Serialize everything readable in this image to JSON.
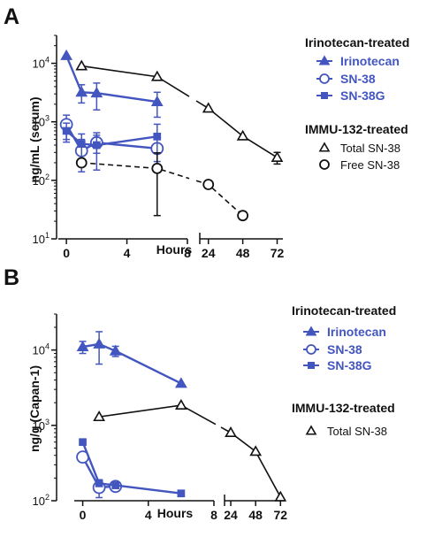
{
  "colors": {
    "blue": "#4356c0",
    "black": "#111111"
  },
  "chart_data": [
    {
      "panel": "A",
      "type": "line",
      "ylabel": "ng/mL (serum)",
      "xlabel": "Hours",
      "yscale": "log",
      "ylim": [
        10,
        30000
      ],
      "xaxis_segments": [
        {
          "range": [
            -0.3,
            8
          ],
          "ticks": [
            0,
            4,
            8
          ]
        },
        {
          "range": [
            18,
            76
          ],
          "ticks": [
            24,
            48,
            72
          ]
        }
      ],
      "yticks": [
        "10^1",
        "10^2",
        "10^3",
        "10^4"
      ],
      "legend": [
        {
          "group": "Irinotecan-treated",
          "items": [
            {
              "name": "Irinotecan",
              "marker": "triangle-filled",
              "color": "#4356c0"
            },
            {
              "name": "SN-38",
              "marker": "circle-open",
              "color": "#4356c0"
            },
            {
              "name": "SN-38G",
              "marker": "square-filled",
              "color": "#4356c0"
            }
          ]
        },
        {
          "group": "IMMU-132-treated",
          "items": [
            {
              "name": "Total SN-38",
              "marker": "triangle-open",
              "color": "#111111"
            },
            {
              "name": "Free SN-38",
              "marker": "circle-open",
              "color": "#111111"
            }
          ]
        }
      ],
      "series": [
        {
          "name": "Irinotecan",
          "color": "#4356c0",
          "marker": "triangle-filled",
          "style": "solid",
          "points": [
            [
              0,
              13500,
              null
            ],
            [
              1,
              3200,
              1100
            ],
            [
              2,
              3100,
              1500
            ],
            [
              6,
              2200,
              1000
            ]
          ]
        },
        {
          "name": "SN-38",
          "color": "#4356c0",
          "marker": "circle-open",
          "style": "solid",
          "points": [
            [
              0,
              900,
              400
            ],
            [
              1,
              320,
              180
            ],
            [
              2,
              440,
              150
            ],
            [
              6,
              350,
              0
            ]
          ]
        },
        {
          "name": "SN-38G",
          "color": "#4356c0",
          "marker": "square-filled",
          "style": "solid",
          "points": [
            [
              0,
              700,
              250
            ],
            [
              1,
              420,
              200
            ],
            [
              2,
              400,
              250
            ],
            [
              6,
              560,
              350
            ]
          ]
        },
        {
          "name": "Total SN-38",
          "color": "#111111",
          "marker": "triangle-open",
          "style": "solid",
          "points": [
            [
              1,
              9000,
              null
            ],
            [
              6,
              5900,
              null
            ],
            [
              24,
              1700,
              null
            ],
            [
              48,
              570,
              null
            ],
            [
              72,
              245,
              55
            ]
          ]
        },
        {
          "name": "Free SN-38",
          "color": "#111111",
          "marker": "circle-open",
          "style": "dashed",
          "points": [
            [
              1,
              200,
              null
            ],
            [
              6,
              160,
              135
            ],
            [
              24,
              85,
              null
            ],
            [
              48,
              25,
              null
            ]
          ]
        }
      ]
    },
    {
      "panel": "B",
      "type": "line",
      "ylabel": "ng/g (Capan-1)",
      "xlabel": "Hours",
      "yscale": "log",
      "ylim": [
        100,
        30000
      ],
      "xaxis_segments": [
        {
          "range": [
            -0.3,
            8
          ],
          "ticks": [
            0,
            4,
            8
          ]
        },
        {
          "range": [
            18,
            76
          ],
          "ticks": [
            24,
            48,
            72
          ]
        }
      ],
      "yticks": [
        "10^2",
        "10^3",
        "10^4"
      ],
      "legend": [
        {
          "group": "Irinotecan-treated",
          "items": [
            {
              "name": "Irinotecan",
              "marker": "triangle-filled",
              "color": "#4356c0"
            },
            {
              "name": "SN-38",
              "marker": "circle-open",
              "color": "#4356c0"
            },
            {
              "name": "SN-38G",
              "marker": "square-filled",
              "color": "#4356c0"
            }
          ]
        },
        {
          "group": "IMMU-132-treated",
          "items": [
            {
              "name": "Total SN-38",
              "marker": "triangle-open",
              "color": "#111111"
            }
          ]
        }
      ],
      "series": [
        {
          "name": "Irinotecan",
          "color": "#4356c0",
          "marker": "triangle-filled",
          "style": "solid",
          "points": [
            [
              0,
              11000,
              2000
            ],
            [
              1,
              12000,
              5500
            ],
            [
              2,
              9700,
              1500
            ],
            [
              6,
              3600,
              null
            ]
          ]
        },
        {
          "name": "SN-38",
          "color": "#4356c0",
          "marker": "circle-open",
          "style": "solid",
          "points": [
            [
              0,
              380,
              null
            ],
            [
              1,
              150,
              40
            ],
            [
              2,
              155,
              null
            ]
          ]
        },
        {
          "name": "SN-38G",
          "color": "#4356c0",
          "marker": "square-filled",
          "style": "solid",
          "points": [
            [
              0,
              600,
              null
            ],
            [
              1,
              170,
              null
            ],
            [
              2,
              160,
              null
            ],
            [
              6,
              125,
              null
            ]
          ]
        },
        {
          "name": "Total SN-38",
          "color": "#111111",
          "marker": "triangle-open",
          "style": "solid",
          "points": [
            [
              1,
              1300,
              null
            ],
            [
              6,
              1850,
              null
            ],
            [
              24,
              800,
              null
            ],
            [
              48,
              450,
              null
            ],
            [
              72,
              112,
              null
            ]
          ]
        }
      ]
    }
  ]
}
